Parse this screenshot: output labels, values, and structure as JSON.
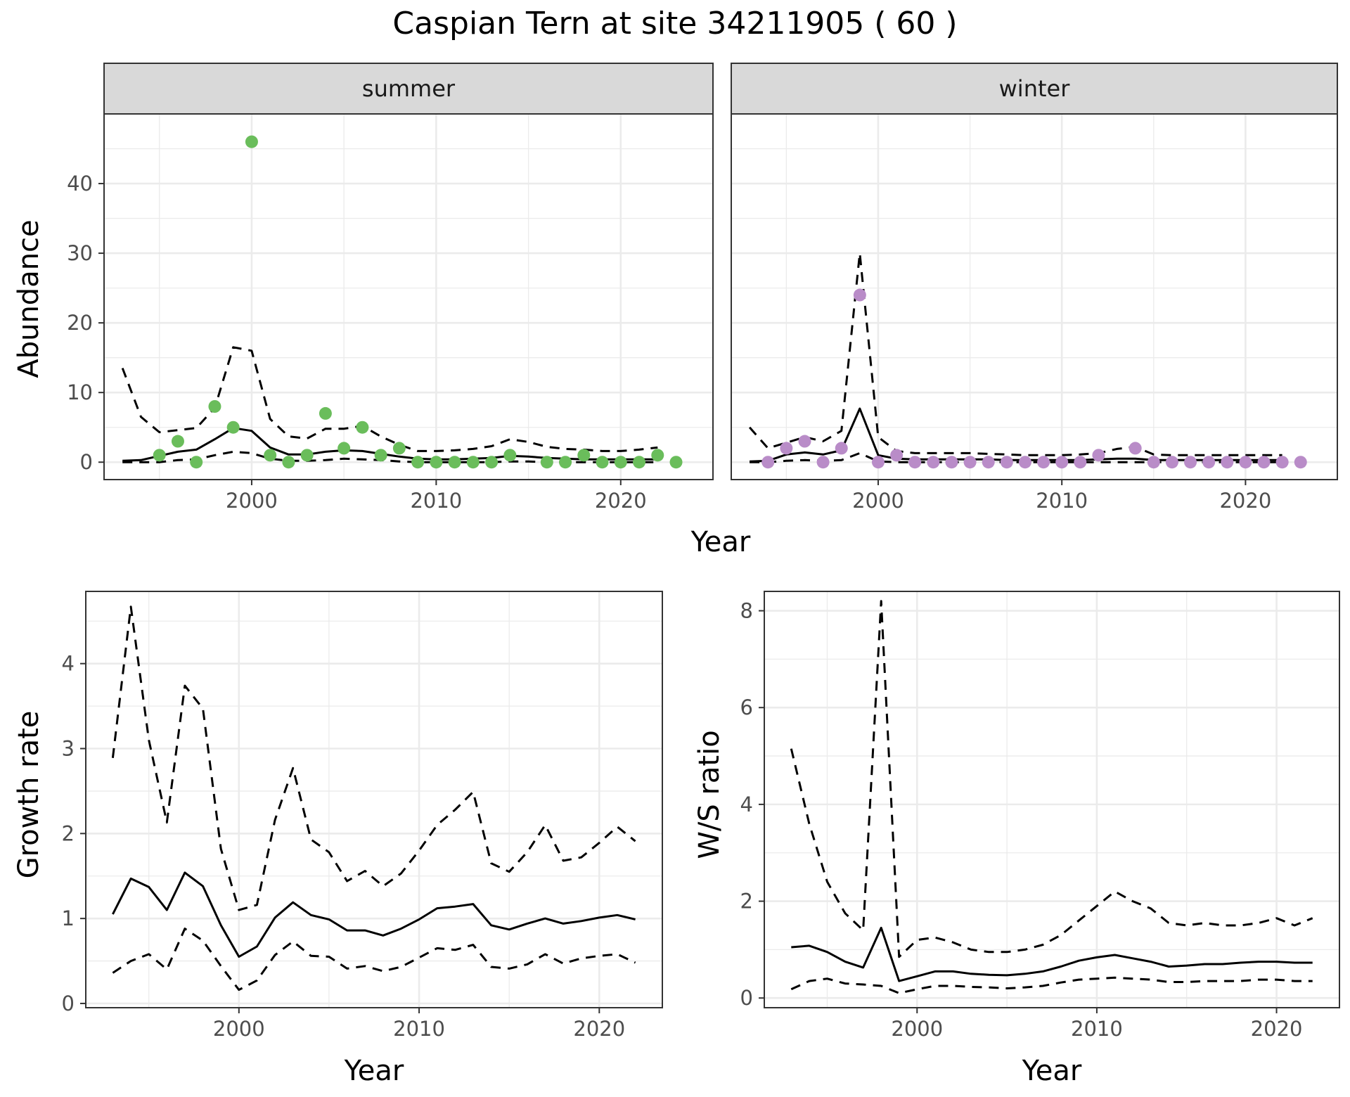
{
  "chart_data": {
    "title": "Caspian Tern at site 34211905 ( 60 )",
    "colors": {
      "summer_points": "#6abd5b",
      "winter_points": "#b98cc8",
      "lines": "#000000",
      "strip": "#d9d9d9",
      "grid": "#ebebeb"
    },
    "panels": [
      {
        "id": "abundance",
        "type": "line+scatter",
        "ylabel": "Abundance",
        "xlabel": "Year",
        "facets": [
          "summer",
          "winter"
        ],
        "xlim": [
          1992,
          2025
        ],
        "ylim": [
          -2.5,
          50
        ],
        "x_ticks": [
          2000,
          2010,
          2020
        ],
        "y_ticks": [
          0,
          10,
          20,
          30,
          40
        ],
        "series": [
          {
            "facet": "summer",
            "x": [
              1993,
              1994,
              1995,
              1996,
              1997,
              1998,
              1999,
              2000,
              2001,
              2002,
              2003,
              2004,
              2005,
              2006,
              2007,
              2008,
              2009,
              2010,
              2011,
              2012,
              2013,
              2014,
              2015,
              2016,
              2017,
              2018,
              2019,
              2020,
              2021,
              2022
            ],
            "mean": [
              0.2,
              0.3,
              0.9,
              1.5,
              1.8,
              3.3,
              4.9,
              4.5,
              2.1,
              1.1,
              1.1,
              1.5,
              1.7,
              1.6,
              1.2,
              0.8,
              0.5,
              0.4,
              0.4,
              0.5,
              0.6,
              0.9,
              0.8,
              0.6,
              0.5,
              0.4,
              0.4,
              0.4,
              0.4,
              0.4
            ],
            "upper": [
              13.5,
              6.5,
              4.3,
              4.6,
              4.9,
              7.8,
              16.5,
              16.0,
              6.2,
              3.7,
              3.4,
              4.8,
              4.8,
              5.2,
              3.7,
              2.5,
              1.6,
              1.6,
              1.7,
              1.9,
              2.3,
              3.3,
              2.9,
              2.2,
              1.9,
              1.8,
              1.6,
              1.6,
              1.8,
              2.1
            ],
            "lower": [
              0,
              0,
              0,
              0.3,
              0.4,
              1.0,
              1.5,
              1.3,
              0.5,
              0.2,
              0.2,
              0.3,
              0.5,
              0.4,
              0.3,
              0.1,
              0,
              0,
              0,
              0,
              0,
              0.1,
              0.1,
              0,
              0,
              0,
              0,
              0,
              0,
              0
            ],
            "points": [
              [
                1995,
                1
              ],
              [
                1996,
                3
              ],
              [
                1997,
                0
              ],
              [
                1998,
                8
              ],
              [
                1999,
                5
              ],
              [
                2000,
                46
              ],
              [
                2001,
                1
              ],
              [
                2002,
                0
              ],
              [
                2003,
                1
              ],
              [
                2004,
                7
              ],
              [
                2005,
                2
              ],
              [
                2006,
                5
              ],
              [
                2007,
                1
              ],
              [
                2008,
                2
              ],
              [
                2009,
                0
              ],
              [
                2010,
                0
              ],
              [
                2011,
                0
              ],
              [
                2012,
                0
              ],
              [
                2013,
                0
              ],
              [
                2014,
                1
              ],
              [
                2016,
                0
              ],
              [
                2017,
                0
              ],
              [
                2018,
                1
              ],
              [
                2019,
                0
              ],
              [
                2020,
                0
              ],
              [
                2021,
                0
              ],
              [
                2022,
                1
              ],
              [
                2023,
                0
              ]
            ]
          },
          {
            "facet": "winter",
            "x": [
              1993,
              1994,
              1995,
              1996,
              1997,
              1998,
              1999,
              2000,
              2001,
              2002,
              2003,
              2004,
              2005,
              2006,
              2007,
              2008,
              2009,
              2010,
              2011,
              2012,
              2013,
              2014,
              2015,
              2016,
              2017,
              2018,
              2019,
              2020,
              2021,
              2022
            ],
            "mean": [
              0.1,
              0.2,
              1.1,
              1.4,
              1.1,
              1.7,
              7.7,
              1.0,
              0.5,
              0.4,
              0.4,
              0.4,
              0.4,
              0.4,
              0.3,
              0.3,
              0.3,
              0.3,
              0.3,
              0.4,
              0.5,
              0.5,
              0.3,
              0.3,
              0.3,
              0.3,
              0.3,
              0.3,
              0.3,
              0.3
            ],
            "upper": [
              5.0,
              2.0,
              2.8,
              3.6,
              3.0,
              4.5,
              30.0,
              3.6,
              1.6,
              1.3,
              1.3,
              1.3,
              1.3,
              1.2,
              1.1,
              1.0,
              1.0,
              1.0,
              1.1,
              1.3,
              1.9,
              2.2,
              1.1,
              1.0,
              1.0,
              1.0,
              1.0,
              1.0,
              1.0,
              1.0
            ],
            "lower": [
              0,
              0,
              0.2,
              0.3,
              0.2,
              0.3,
              1.3,
              0.1,
              0,
              0,
              0,
              0,
              0,
              0,
              0,
              0,
              0,
              0,
              0,
              0,
              0,
              0,
              0,
              0,
              0,
              0,
              0,
              0,
              0,
              0
            ],
            "points": [
              [
                1994,
                0
              ],
              [
                1995,
                2
              ],
              [
                1996,
                3
              ],
              [
                1997,
                0
              ],
              [
                1998,
                2
              ],
              [
                1999,
                24
              ],
              [
                2000,
                0
              ],
              [
                2001,
                1
              ],
              [
                2002,
                0
              ],
              [
                2003,
                0
              ],
              [
                2004,
                0
              ],
              [
                2005,
                0
              ],
              [
                2006,
                0
              ],
              [
                2007,
                0
              ],
              [
                2008,
                0
              ],
              [
                2009,
                0
              ],
              [
                2010,
                0
              ],
              [
                2011,
                0
              ],
              [
                2012,
                1
              ],
              [
                2014,
                2
              ],
              [
                2015,
                0
              ],
              [
                2016,
                0
              ],
              [
                2017,
                0
              ],
              [
                2018,
                0
              ],
              [
                2019,
                0
              ],
              [
                2020,
                0
              ],
              [
                2021,
                0
              ],
              [
                2022,
                0
              ],
              [
                2023,
                0
              ]
            ]
          }
        ]
      },
      {
        "id": "growth",
        "type": "line",
        "ylabel": "Growth rate",
        "xlabel": "Year",
        "xlim": [
          1991.5,
          2023.5
        ],
        "ylim": [
          -0.05,
          4.85
        ],
        "x_ticks": [
          2000,
          2010,
          2020
        ],
        "y_ticks": [
          0,
          1,
          2,
          3,
          4
        ],
        "series": {
          "x": [
            1993,
            1994,
            1995,
            1996,
            1997,
            1998,
            1999,
            2000,
            2001,
            2002,
            2003,
            2004,
            2005,
            2006,
            2007,
            2008,
            2009,
            2010,
            2011,
            2012,
            2013,
            2014,
            2015,
            2016,
            2017,
            2018,
            2019,
            2020,
            2021,
            2022
          ],
          "mean": [
            1.05,
            1.47,
            1.37,
            1.1,
            1.54,
            1.38,
            0.92,
            0.55,
            0.67,
            1.01,
            1.19,
            1.04,
            0.99,
            0.86,
            0.86,
            0.8,
            0.88,
            0.99,
            1.12,
            1.14,
            1.17,
            0.92,
            0.87,
            0.94,
            1.0,
            0.94,
            0.97,
            1.01,
            1.04,
            0.99
          ],
          "upper": [
            2.89,
            4.67,
            3.1,
            2.13,
            3.74,
            3.47,
            1.82,
            1.1,
            1.16,
            2.16,
            2.77,
            1.93,
            1.78,
            1.44,
            1.56,
            1.38,
            1.53,
            1.8,
            2.1,
            2.28,
            2.49,
            1.65,
            1.55,
            1.78,
            2.1,
            1.68,
            1.72,
            1.89,
            2.08,
            1.91
          ],
          "lower": [
            0.36,
            0.5,
            0.58,
            0.4,
            0.88,
            0.74,
            0.44,
            0.16,
            0.27,
            0.57,
            0.73,
            0.56,
            0.55,
            0.41,
            0.44,
            0.38,
            0.43,
            0.54,
            0.65,
            0.63,
            0.69,
            0.43,
            0.41,
            0.46,
            0.58,
            0.47,
            0.53,
            0.56,
            0.58,
            0.48
          ]
        }
      },
      {
        "id": "ratio",
        "type": "line",
        "ylabel": "W/S ratio",
        "xlabel": "Year",
        "xlim": [
          1991.5,
          2023.5
        ],
        "ylim": [
          -0.2,
          8.4
        ],
        "x_ticks": [
          2000,
          2010,
          2020
        ],
        "y_ticks": [
          0,
          2,
          4,
          6,
          8
        ],
        "series": {
          "x": [
            1993,
            1994,
            1995,
            1996,
            1997,
            1998,
            1999,
            2000,
            2001,
            2002,
            2003,
            2004,
            2005,
            2006,
            2007,
            2008,
            2009,
            2010,
            2011,
            2012,
            2013,
            2014,
            2015,
            2016,
            2017,
            2018,
            2019,
            2020,
            2021,
            2022
          ],
          "mean": [
            1.05,
            1.08,
            0.95,
            0.75,
            0.63,
            1.45,
            0.35,
            0.45,
            0.55,
            0.55,
            0.5,
            0.48,
            0.47,
            0.5,
            0.55,
            0.65,
            0.77,
            0.84,
            0.89,
            0.82,
            0.75,
            0.65,
            0.67,
            0.7,
            0.7,
            0.73,
            0.75,
            0.75,
            0.73,
            0.73
          ],
          "upper": [
            5.15,
            3.6,
            2.4,
            1.75,
            1.4,
            8.2,
            0.85,
            1.2,
            1.25,
            1.15,
            1.0,
            0.95,
            0.95,
            1.0,
            1.1,
            1.3,
            1.6,
            1.9,
            2.2,
            2.0,
            1.85,
            1.55,
            1.5,
            1.55,
            1.5,
            1.5,
            1.55,
            1.65,
            1.5,
            1.65
          ],
          "lower": [
            0.18,
            0.35,
            0.4,
            0.3,
            0.28,
            0.25,
            0.1,
            0.18,
            0.25,
            0.25,
            0.23,
            0.22,
            0.2,
            0.22,
            0.25,
            0.32,
            0.38,
            0.4,
            0.42,
            0.4,
            0.38,
            0.33,
            0.33,
            0.35,
            0.35,
            0.35,
            0.38,
            0.38,
            0.35,
            0.35
          ]
        }
      }
    ]
  }
}
